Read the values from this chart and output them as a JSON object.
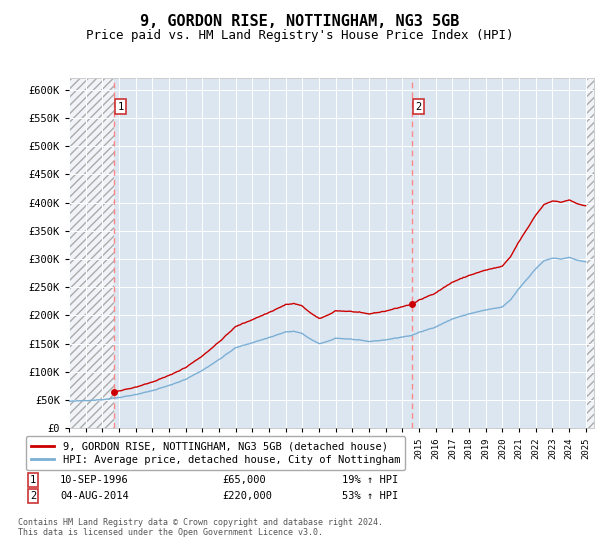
{
  "title": "9, GORDON RISE, NOTTINGHAM, NG3 5GB",
  "subtitle": "Price paid vs. HM Land Registry's House Price Index (HPI)",
  "title_fontsize": 11,
  "subtitle_fontsize": 9,
  "background_color": "#dce6f1",
  "hatch_color": "#bbbbbb",
  "ylim": [
    0,
    620000
  ],
  "yticks": [
    0,
    50000,
    100000,
    150000,
    200000,
    250000,
    300000,
    350000,
    400000,
    450000,
    500000,
    550000,
    600000
  ],
  "ytick_labels": [
    "£0",
    "£50K",
    "£100K",
    "£150K",
    "£200K",
    "£250K",
    "£300K",
    "£350K",
    "£400K",
    "£450K",
    "£500K",
    "£550K",
    "£600K"
  ],
  "xlim_start": 1994.0,
  "xlim_end": 2025.5,
  "sale1_date": 1996.69,
  "sale1_price": 65000,
  "sale1_label": "1",
  "sale1_info": "10-SEP-1996",
  "sale1_amount": "£65,000",
  "sale1_hpi": "19% ↑ HPI",
  "sale2_date": 2014.58,
  "sale2_price": 220000,
  "sale2_label": "2",
  "sale2_info": "04-AUG-2014",
  "sale2_amount": "£220,000",
  "sale2_hpi": "53% ↑ HPI",
  "property_color": "#cc0000",
  "hpi_color": "#7bafd4",
  "vline_color": "#ff8888",
  "legend_property": "9, GORDON RISE, NOTTINGHAM, NG3 5GB (detached house)",
  "legend_hpi": "HPI: Average price, detached house, City of Nottingham",
  "footnote": "Contains HM Land Registry data © Crown copyright and database right 2024.\nThis data is licensed under the Open Government Licence v3.0."
}
